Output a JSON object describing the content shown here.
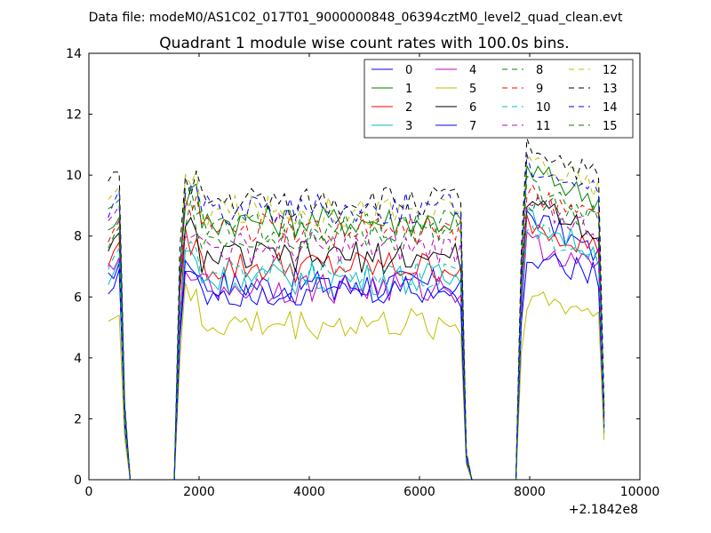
{
  "figure": {
    "suptitle": "Data file: modeM0/AS1C02_017T01_9000000848_06394cztM0_level2_quad_clean.evt"
  },
  "chart_data": {
    "type": "line",
    "title": "Quadrant 1 module wise count rates with 100.0s bins.",
    "xlabel": "",
    "ylabel": "",
    "x_offset_label": "+2.1842e8",
    "xlim": [
      0,
      10000
    ],
    "ylim": [
      0,
      14
    ],
    "x_ticks": [
      0,
      2000,
      4000,
      6000,
      8000,
      10000
    ],
    "y_ticks": [
      0,
      2,
      4,
      6,
      8,
      10,
      12,
      14
    ],
    "grid": false,
    "legend": {
      "position": "top-right",
      "columns": 4
    },
    "x": [
      350,
      450,
      550,
      650,
      750,
      850,
      950,
      1050,
      1150,
      1250,
      1350,
      1450,
      1550,
      1650,
      1750,
      1850,
      1950,
      2050,
      2150,
      2250,
      2350,
      2450,
      2550,
      2650,
      2750,
      2850,
      2950,
      3050,
      3150,
      3250,
      3350,
      3450,
      3550,
      3650,
      3750,
      3850,
      3950,
      4050,
      4150,
      4250,
      4350,
      4450,
      4550,
      4650,
      4750,
      4850,
      4950,
      5050,
      5150,
      5250,
      5350,
      5450,
      5550,
      5650,
      5750,
      5850,
      5950,
      6050,
      6150,
      6250,
      6350,
      6450,
      6550,
      6650,
      6750,
      6850,
      6950,
      7050,
      7150,
      7250,
      7350,
      7450,
      7550,
      7650,
      7750,
      7850,
      7950,
      8050,
      8150,
      8250,
      8350,
      8450,
      8550,
      8650,
      8750,
      8850,
      8950,
      9050,
      9150,
      9250,
      9350
    ],
    "series": [
      {
        "name": "0",
        "color": "#0000ff",
        "dash": false,
        "base": [
          6.1,
          6.3,
          6.9
        ],
        "mid": 6.4,
        "high": 8.8
      },
      {
        "name": "1",
        "color": "#008000",
        "dash": false,
        "base": [
          8.2,
          8.3,
          8.6
        ],
        "mid": 8.5,
        "high": 10.2
      },
      {
        "name": "2",
        "color": "#ff0000",
        "dash": false,
        "base": [
          7.0,
          7.5,
          7.8
        ],
        "mid": 7.0,
        "high": 8.5
      },
      {
        "name": "3",
        "color": "#00bfbf",
        "dash": false,
        "base": [
          6.4,
          6.8,
          7.2
        ],
        "mid": 6.6,
        "high": 8.6
      },
      {
        "name": "4",
        "color": "#bf00bf",
        "dash": false,
        "base": [
          7.1,
          6.9,
          7.3
        ],
        "mid": 6.3,
        "high": 7.8
      },
      {
        "name": "5",
        "color": "#bfbf00",
        "dash": false,
        "base": [
          5.2,
          5.3,
          5.4
        ],
        "mid": 5.1,
        "high": 6.0
      },
      {
        "name": "6",
        "color": "#000000",
        "dash": false,
        "base": [
          7.5,
          7.9,
          8.1
        ],
        "mid": 7.3,
        "high": 9.3
      },
      {
        "name": "7",
        "color": "#0000ff",
        "dash": false,
        "base": [
          6.8,
          6.6,
          7.1
        ],
        "mid": 6.2,
        "high": 7.4
      },
      {
        "name": "8",
        "color": "#008000",
        "dash": true,
        "base": [
          7.6,
          8.0,
          8.3
        ],
        "mid": 8.0,
        "high": 9.2
      },
      {
        "name": "9",
        "color": "#ff0000",
        "dash": true,
        "base": [
          7.8,
          8.2,
          8.5
        ],
        "mid": 8.2,
        "high": 9.4
      },
      {
        "name": "10",
        "color": "#00bfbf",
        "dash": true,
        "base": [
          6.9,
          7.3,
          7.6
        ],
        "mid": 6.8,
        "high": 8.2
      },
      {
        "name": "11",
        "color": "#bf00bf",
        "dash": true,
        "base": [
          8.5,
          8.7,
          9.0
        ],
        "mid": 7.6,
        "high": 9.0
      },
      {
        "name": "12",
        "color": "#bfbf00",
        "dash": true,
        "base": [
          9.2,
          9.4,
          9.6
        ],
        "mid": 8.8,
        "high": 10.6
      },
      {
        "name": "13",
        "color": "#000000",
        "dash": true,
        "base": [
          9.8,
          10.1,
          10.1
        ],
        "mid": 9.1,
        "high": 11.0
      },
      {
        "name": "14",
        "color": "#0000ff",
        "dash": true,
        "base": [
          8.6,
          9.1,
          9.5
        ],
        "mid": 8.9,
        "high": 10.4
      },
      {
        "name": "15",
        "color": "#008000",
        "dash": true,
        "base": [
          8.9,
          9.0,
          9.2
        ],
        "mid": 8.3,
        "high": 9.6
      }
    ]
  }
}
